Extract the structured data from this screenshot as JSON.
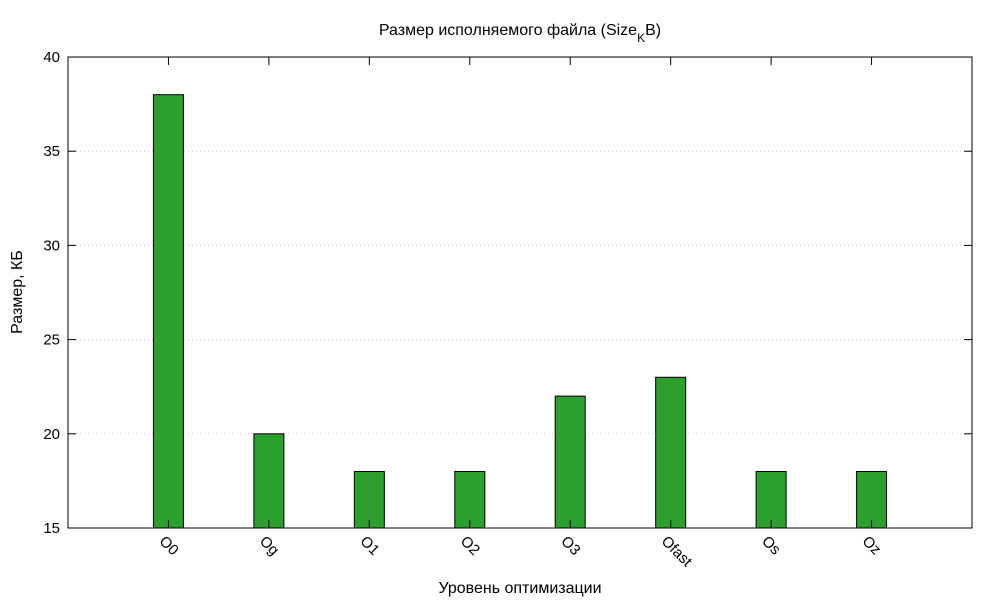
{
  "chart_data": {
    "type": "bar",
    "title": "Размер исполняемого файла (Size",
    "title_subscript": "K",
    "title_suffix": "B)",
    "xlabel": "Уровень оптимизации",
    "ylabel": "Размер, КБ",
    "categories": [
      "O0",
      "Og",
      "O1",
      "O2",
      "O3",
      "Ofast",
      "Os",
      "Oz"
    ],
    "values": [
      38,
      20,
      18,
      18,
      22,
      23,
      18,
      18
    ],
    "ylim": [
      15,
      40
    ],
    "yticks": [
      15,
      20,
      25,
      30,
      35,
      40
    ],
    "grid": true,
    "bar_color": "#2ca02c"
  }
}
